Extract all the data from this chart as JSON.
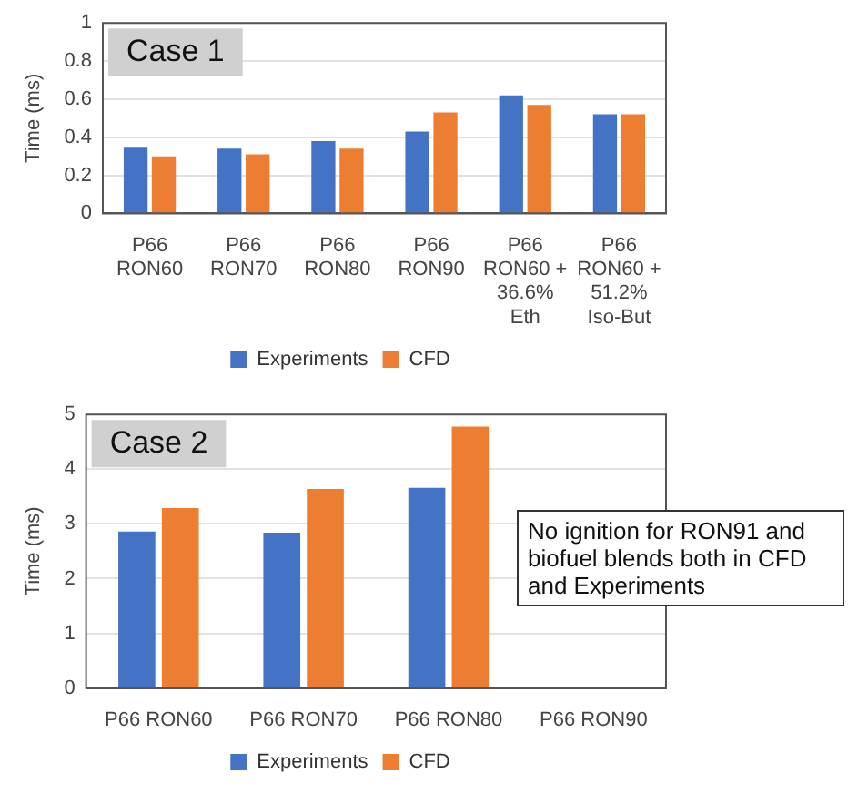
{
  "chart_data": [
    {
      "type": "bar",
      "title": "Case 1",
      "ylabel": "Time (ms)",
      "categories": [
        "P66 RON60",
        "P66 RON70",
        "P66 RON80",
        "P66 RON90",
        "P66 RON60 + 36.6% Eth",
        "P66 RON60 + 51.2% Iso-But"
      ],
      "series": [
        {
          "name": "Experiments",
          "color": "#4472c4",
          "values": [
            0.35,
            0.34,
            0.38,
            0.43,
            0.62,
            0.52
          ]
        },
        {
          "name": "CFD",
          "color": "#ed7d31",
          "values": [
            0.3,
            0.31,
            0.34,
            0.53,
            0.57,
            0.52
          ]
        }
      ],
      "ylim": [
        0,
        1
      ],
      "yticks": [
        0,
        0.2,
        0.4,
        0.6,
        0.8,
        1
      ],
      "grid": "y",
      "legend": "bottom"
    },
    {
      "type": "bar",
      "title": "Case 2",
      "ylabel": "Time (ms)",
      "categories": [
        "P66 RON60",
        "P66 RON70",
        "P66 RON80",
        "P66 RON90"
      ],
      "series": [
        {
          "name": "Experiments",
          "color": "#4472c4",
          "values": [
            2.86,
            2.84,
            3.66,
            null
          ]
        },
        {
          "name": "CFD",
          "color": "#ed7d31",
          "values": [
            3.29,
            3.64,
            4.78,
            null
          ]
        }
      ],
      "ylim": [
        0,
        5
      ],
      "yticks": [
        0,
        1,
        2,
        3,
        4,
        5
      ],
      "grid": "y",
      "legend": "bottom",
      "annotations": [
        "No ignition for RON91 and biofuel blends both in CFD and Experiments"
      ]
    }
  ]
}
